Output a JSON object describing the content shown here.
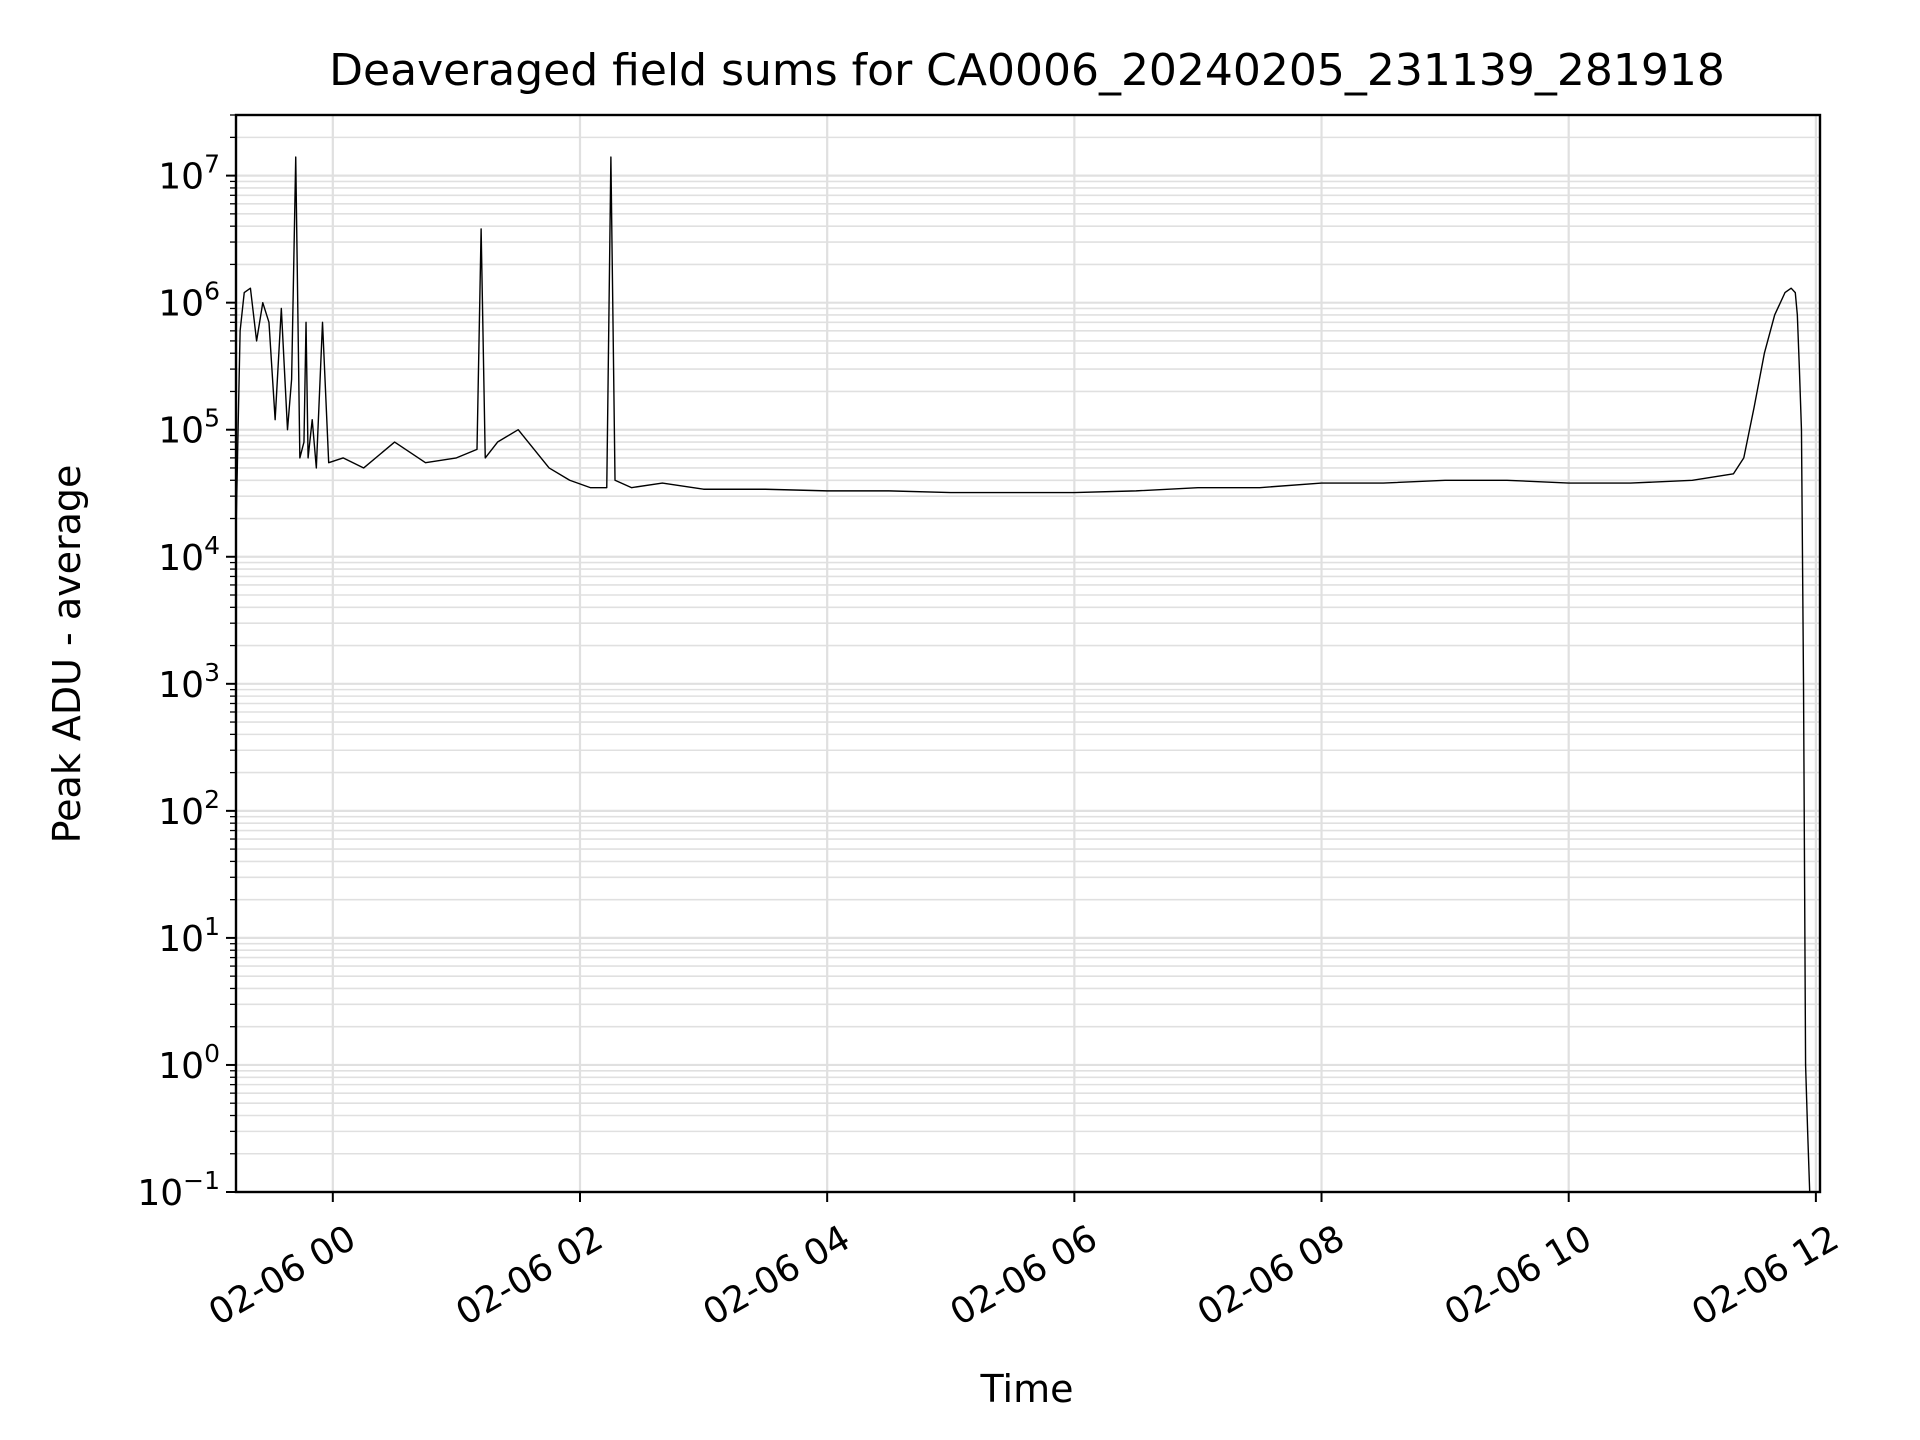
{
  "chart_data": {
    "type": "line",
    "title": "Deaveraged field sums for CA0006_20240205_231139_281918",
    "xlabel": "Time",
    "ylabel": "Peak ADU - average",
    "yscale": "log",
    "ylim": [
      0.1,
      30000000
    ],
    "xlim": [
      "2024-02-05 23:13",
      "2024-02-06 12:02"
    ],
    "grid": true,
    "x_ticks": [
      "2024-02-06 00:00",
      "2024-02-06 02:00",
      "2024-02-06 04:00",
      "2024-02-06 06:00",
      "2024-02-06 08:00",
      "2024-02-06 10:00",
      "2024-02-06 12:00"
    ],
    "x_tick_labels": [
      "02-06 00",
      "02-06 02",
      "02-06 04",
      "02-06 06",
      "02-06 08",
      "02-06 10",
      "02-06 12"
    ],
    "y_ticks": [
      {
        "base": "10",
        "exp": "7",
        "value": 10000000
      },
      {
        "base": "10",
        "exp": "6",
        "value": 1000000
      },
      {
        "base": "10",
        "exp": "5",
        "value": 100000
      },
      {
        "base": "10",
        "exp": "4",
        "value": 10000
      },
      {
        "base": "10",
        "exp": "3",
        "value": 1000
      },
      {
        "base": "10",
        "exp": "2",
        "value": 100
      },
      {
        "base": "10",
        "exp": "1",
        "value": 10
      },
      {
        "base": "10",
        "exp": "0",
        "value": 1
      },
      {
        "base": "10",
        "exp": "−1",
        "value": 0.1
      }
    ],
    "series": [
      {
        "color": "#000000",
        "x": [
          "2024-02-05 23:13",
          "2024-02-05 23:14",
          "2024-02-05 23:15",
          "2024-02-05 23:17",
          "2024-02-05 23:20",
          "2024-02-05 23:23",
          "2024-02-05 23:26",
          "2024-02-05 23:29",
          "2024-02-05 23:32",
          "2024-02-05 23:35",
          "2024-02-05 23:38",
          "2024-02-05 23:40",
          "2024-02-05 23:42",
          "2024-02-05 23:44",
          "2024-02-05 23:46",
          "2024-02-05 23:47",
          "2024-02-05 23:48",
          "2024-02-05 23:50",
          "2024-02-05 23:52",
          "2024-02-05 23:55",
          "2024-02-05 23:58",
          "2024-02-06 00:05",
          "2024-02-06 00:15",
          "2024-02-06 00:30",
          "2024-02-06 00:45",
          "2024-02-06 01:00",
          "2024-02-06 01:10",
          "2024-02-06 01:12",
          "2024-02-06 01:14",
          "2024-02-06 01:20",
          "2024-02-06 01:30",
          "2024-02-06 01:45",
          "2024-02-06 01:55",
          "2024-02-06 02:05",
          "2024-02-06 02:13",
          "2024-02-06 02:15",
          "2024-02-06 02:17",
          "2024-02-06 02:25",
          "2024-02-06 02:40",
          "2024-02-06 03:00",
          "2024-02-06 03:30",
          "2024-02-06 04:00",
          "2024-02-06 04:30",
          "2024-02-06 05:00",
          "2024-02-06 05:30",
          "2024-02-06 06:00",
          "2024-02-06 06:30",
          "2024-02-06 07:00",
          "2024-02-06 07:30",
          "2024-02-06 08:00",
          "2024-02-06 08:30",
          "2024-02-06 09:00",
          "2024-02-06 09:30",
          "2024-02-06 10:00",
          "2024-02-06 10:30",
          "2024-02-06 11:00",
          "2024-02-06 11:20",
          "2024-02-06 11:25",
          "2024-02-06 11:30",
          "2024-02-06 11:35",
          "2024-02-06 11:40",
          "2024-02-06 11:45",
          "2024-02-06 11:48",
          "2024-02-06 11:50",
          "2024-02-06 11:51",
          "2024-02-06 11:52",
          "2024-02-06 11:53",
          "2024-02-06 11:54",
          "2024-02-06 11:55",
          "2024-02-06 11:56",
          "2024-02-06 11:57"
        ],
        "y": [
          15000,
          100000,
          600000,
          1200000,
          1300000,
          500000,
          1000000,
          700000,
          120000,
          900000,
          100000,
          250000,
          14000000,
          60000,
          80000,
          700000,
          60000,
          120000,
          50000,
          700000,
          55000,
          60000,
          50000,
          80000,
          55000,
          60000,
          70000,
          3800000,
          60000,
          80000,
          100000,
          50000,
          40000,
          35000,
          35000,
          14000000,
          40000,
          35000,
          38000,
          34000,
          34000,
          33000,
          33000,
          32000,
          32000,
          32000,
          33000,
          35000,
          35000,
          38000,
          38000,
          40000,
          40000,
          38000,
          38000,
          40000,
          45000,
          60000,
          150000,
          400000,
          800000,
          1200000,
          1300000,
          1200000,
          800000,
          300000,
          100000,
          1000,
          1,
          0.3,
          0.1
        ]
      }
    ]
  }
}
